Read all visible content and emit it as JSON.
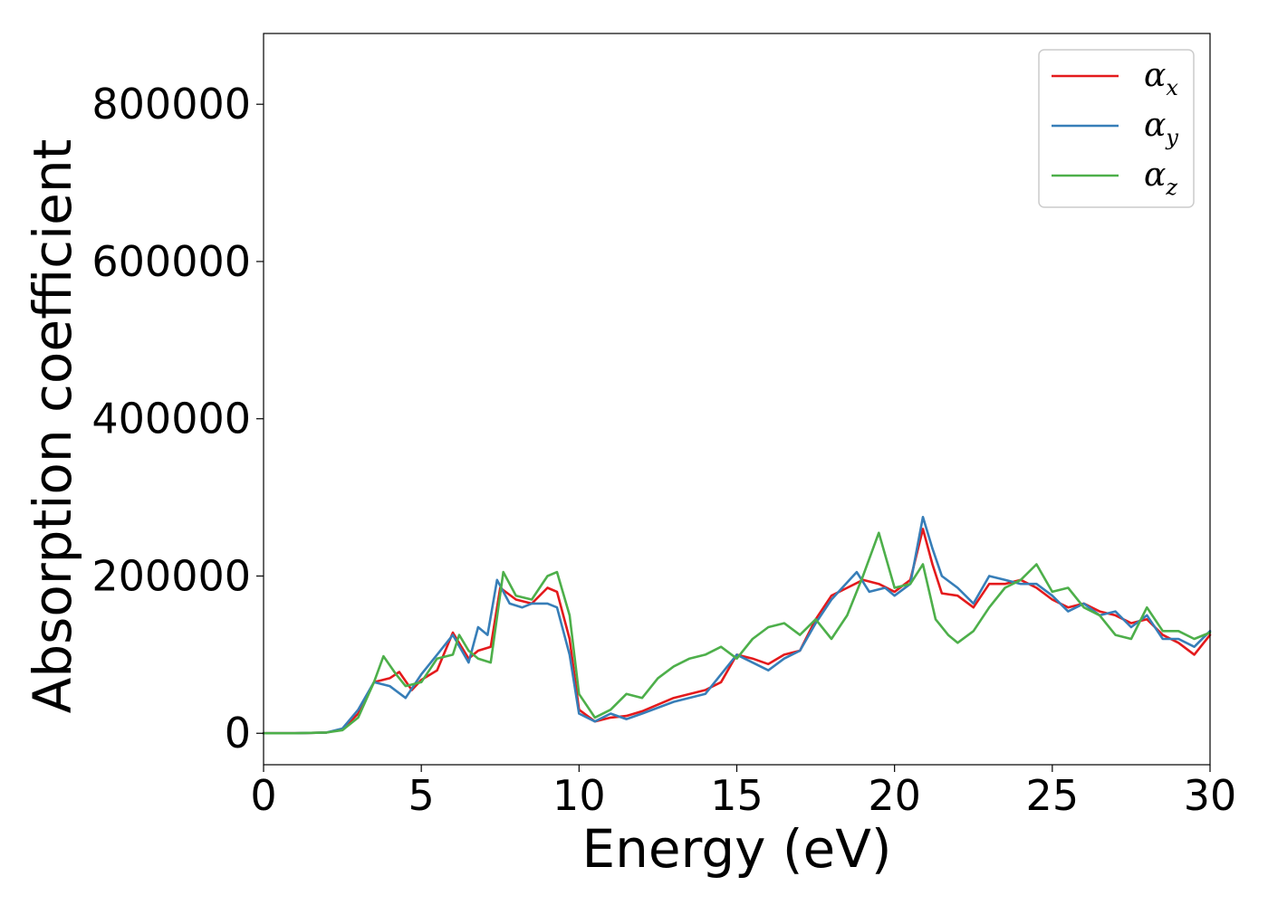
{
  "chart_data": {
    "type": "line",
    "title": "",
    "xlabel": "Energy (eV)",
    "ylabel": "Absorption coefficient",
    "xlim": [
      0,
      30
    ],
    "ylim": [
      -40000,
      890000
    ],
    "xticks": [
      0,
      5,
      10,
      15,
      20,
      25,
      30
    ],
    "yticks": [
      0,
      200000,
      400000,
      600000,
      800000
    ],
    "grid": false,
    "legend_position": "top-right",
    "series": [
      {
        "name": "α",
        "subscript": "x",
        "color": "#e41a1c",
        "points": [
          [
            0,
            0
          ],
          [
            1,
            0
          ],
          [
            2,
            1000
          ],
          [
            2.5,
            5000
          ],
          [
            3,
            25000
          ],
          [
            3.5,
            65000
          ],
          [
            4,
            70000
          ],
          [
            4.3,
            78000
          ],
          [
            4.7,
            55000
          ],
          [
            5,
            68000
          ],
          [
            5.5,
            80000
          ],
          [
            6,
            128000
          ],
          [
            6.5,
            95000
          ],
          [
            6.8,
            105000
          ],
          [
            7.2,
            110000
          ],
          [
            7.5,
            185000
          ],
          [
            8,
            170000
          ],
          [
            8.5,
            165000
          ],
          [
            9,
            185000
          ],
          [
            9.3,
            180000
          ],
          [
            9.7,
            120000
          ],
          [
            10,
            30000
          ],
          [
            10.5,
            15000
          ],
          [
            11,
            20000
          ],
          [
            11.5,
            22000
          ],
          [
            12,
            28000
          ],
          [
            13,
            45000
          ],
          [
            14,
            55000
          ],
          [
            14.5,
            65000
          ],
          [
            15,
            100000
          ],
          [
            15.5,
            95000
          ],
          [
            16,
            88000
          ],
          [
            16.5,
            100000
          ],
          [
            17,
            105000
          ],
          [
            17.5,
            145000
          ],
          [
            18,
            175000
          ],
          [
            18.5,
            185000
          ],
          [
            19,
            195000
          ],
          [
            19.5,
            190000
          ],
          [
            20,
            180000
          ],
          [
            20.5,
            195000
          ],
          [
            20.9,
            260000
          ],
          [
            21.2,
            215000
          ],
          [
            21.5,
            178000
          ],
          [
            22,
            175000
          ],
          [
            22.5,
            160000
          ],
          [
            23,
            190000
          ],
          [
            23.5,
            190000
          ],
          [
            24,
            195000
          ],
          [
            24.5,
            185000
          ],
          [
            25,
            170000
          ],
          [
            25.5,
            160000
          ],
          [
            26,
            165000
          ],
          [
            26.5,
            155000
          ],
          [
            27,
            150000
          ],
          [
            27.5,
            140000
          ],
          [
            28,
            145000
          ],
          [
            28.5,
            125000
          ],
          [
            29,
            115000
          ],
          [
            29.5,
            100000
          ],
          [
            30,
            125000
          ]
        ]
      },
      {
        "name": "α",
        "subscript": "y",
        "color": "#377eb8",
        "points": [
          [
            0,
            0
          ],
          [
            1,
            0
          ],
          [
            2,
            1000
          ],
          [
            2.5,
            6000
          ],
          [
            3,
            30000
          ],
          [
            3.5,
            65000
          ],
          [
            4,
            60000
          ],
          [
            4.5,
            45000
          ],
          [
            5,
            75000
          ],
          [
            5.5,
            100000
          ],
          [
            6,
            125000
          ],
          [
            6.5,
            90000
          ],
          [
            6.8,
            135000
          ],
          [
            7.1,
            125000
          ],
          [
            7.4,
            195000
          ],
          [
            7.8,
            165000
          ],
          [
            8.2,
            160000
          ],
          [
            8.5,
            165000
          ],
          [
            9,
            165000
          ],
          [
            9.3,
            160000
          ],
          [
            9.7,
            100000
          ],
          [
            10,
            25000
          ],
          [
            10.5,
            15000
          ],
          [
            11,
            25000
          ],
          [
            11.5,
            18000
          ],
          [
            12,
            25000
          ],
          [
            13,
            40000
          ],
          [
            14,
            50000
          ],
          [
            15,
            100000
          ],
          [
            15.5,
            90000
          ],
          [
            16,
            80000
          ],
          [
            16.5,
            95000
          ],
          [
            17,
            105000
          ],
          [
            17.5,
            140000
          ],
          [
            18,
            170000
          ],
          [
            18.8,
            205000
          ],
          [
            19.2,
            180000
          ],
          [
            19.7,
            185000
          ],
          [
            20,
            175000
          ],
          [
            20.5,
            190000
          ],
          [
            20.9,
            275000
          ],
          [
            21.2,
            235000
          ],
          [
            21.5,
            200000
          ],
          [
            22,
            185000
          ],
          [
            22.5,
            165000
          ],
          [
            23,
            200000
          ],
          [
            23.5,
            195000
          ],
          [
            24,
            190000
          ],
          [
            24.5,
            190000
          ],
          [
            25,
            175000
          ],
          [
            25.5,
            155000
          ],
          [
            26,
            165000
          ],
          [
            26.5,
            150000
          ],
          [
            27,
            155000
          ],
          [
            27.5,
            135000
          ],
          [
            28,
            150000
          ],
          [
            28.5,
            120000
          ],
          [
            29,
            120000
          ],
          [
            29.5,
            110000
          ],
          [
            30,
            130000
          ]
        ]
      },
      {
        "name": "α",
        "subscript": "z",
        "color": "#4daf4a",
        "points": [
          [
            0,
            0
          ],
          [
            1,
            0
          ],
          [
            2,
            1000
          ],
          [
            2.5,
            4000
          ],
          [
            3,
            20000
          ],
          [
            3.5,
            65000
          ],
          [
            3.8,
            98000
          ],
          [
            4.2,
            75000
          ],
          [
            4.5,
            60000
          ],
          [
            5,
            65000
          ],
          [
            5.5,
            95000
          ],
          [
            6,
            100000
          ],
          [
            6.2,
            125000
          ],
          [
            6.5,
            105000
          ],
          [
            6.8,
            95000
          ],
          [
            7.2,
            90000
          ],
          [
            7.6,
            205000
          ],
          [
            8,
            175000
          ],
          [
            8.5,
            170000
          ],
          [
            9,
            200000
          ],
          [
            9.3,
            205000
          ],
          [
            9.7,
            150000
          ],
          [
            10,
            50000
          ],
          [
            10.5,
            20000
          ],
          [
            11,
            30000
          ],
          [
            11.5,
            50000
          ],
          [
            12,
            45000
          ],
          [
            12.5,
            70000
          ],
          [
            13,
            85000
          ],
          [
            13.5,
            95000
          ],
          [
            14,
            100000
          ],
          [
            14.5,
            110000
          ],
          [
            15,
            95000
          ],
          [
            15.5,
            120000
          ],
          [
            16,
            135000
          ],
          [
            16.5,
            140000
          ],
          [
            17,
            125000
          ],
          [
            17.5,
            145000
          ],
          [
            18,
            120000
          ],
          [
            18.5,
            150000
          ],
          [
            19,
            200000
          ],
          [
            19.5,
            255000
          ],
          [
            20,
            185000
          ],
          [
            20.5,
            190000
          ],
          [
            20.9,
            215000
          ],
          [
            21.3,
            145000
          ],
          [
            21.7,
            125000
          ],
          [
            22,
            115000
          ],
          [
            22.5,
            130000
          ],
          [
            23,
            160000
          ],
          [
            23.5,
            185000
          ],
          [
            24,
            195000
          ],
          [
            24.5,
            215000
          ],
          [
            25,
            180000
          ],
          [
            25.5,
            185000
          ],
          [
            26,
            160000
          ],
          [
            26.5,
            150000
          ],
          [
            27,
            125000
          ],
          [
            27.5,
            120000
          ],
          [
            28,
            160000
          ],
          [
            28.5,
            130000
          ],
          [
            29,
            130000
          ],
          [
            29.5,
            120000
          ],
          [
            30,
            128000
          ]
        ]
      }
    ]
  }
}
